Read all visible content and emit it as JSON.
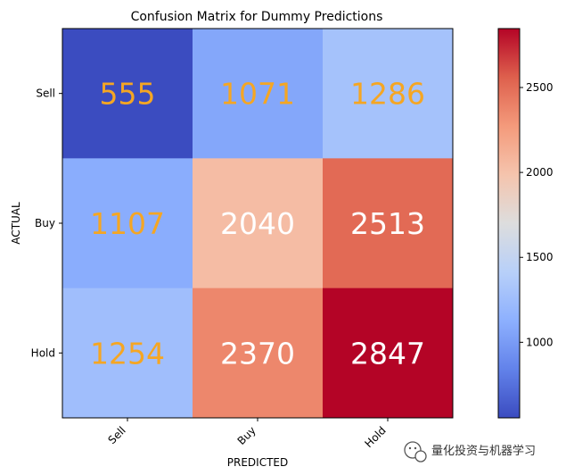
{
  "chart_data": {
    "type": "heatmap",
    "title": "Confusion Matrix for Dummy Predictions",
    "xlabel": "PREDICTED",
    "ylabel": "ACTUAL",
    "x_categories": [
      "Sell",
      "Buy",
      "Hold"
    ],
    "y_categories": [
      "Sell",
      "Buy",
      "Hold"
    ],
    "values": [
      [
        555,
        1071,
        1286
      ],
      [
        1107,
        2040,
        2513
      ],
      [
        1254,
        2370,
        2847
      ]
    ],
    "colormap": "coolwarm",
    "colorbar": {
      "range": [
        555,
        2847
      ],
      "ticks": [
        1000,
        1500,
        2000,
        2500
      ]
    },
    "label_colors": {
      "low": "#f5a623",
      "high": "#ffffff"
    }
  },
  "watermark": {
    "text": "量化投资与机器学习"
  }
}
